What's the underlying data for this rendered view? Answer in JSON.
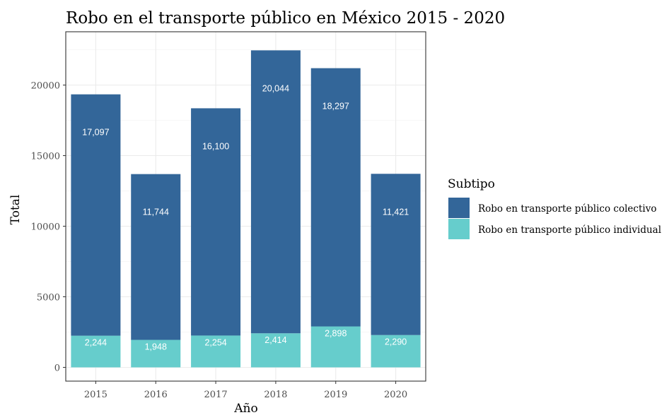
{
  "chart_data": {
    "type": "bar",
    "stacked": true,
    "title": "Robo en el transporte público en México 2015 - 2020",
    "xlabel": "Año",
    "ylabel": "Total",
    "categories": [
      "2015",
      "2016",
      "2017",
      "2018",
      "2019",
      "2020"
    ],
    "series": [
      {
        "name": "Robo en transporte público individual",
        "color": "#66CDCC",
        "values": [
          2244,
          1948,
          2254,
          2414,
          2898,
          2290
        ],
        "labels": [
          "2,244",
          "1,948",
          "2,254",
          "2,414",
          "2,898",
          "2,290"
        ]
      },
      {
        "name": "Robo en transporte público colectivo",
        "color": "#336699",
        "values": [
          17097,
          11744,
          16100,
          20044,
          18297,
          11421
        ],
        "labels": [
          "17,097",
          "11,744",
          "16,100",
          "20,044",
          "18,297",
          "11,421"
        ]
      }
    ],
    "ylim": [
      0,
      23000
    ],
    "yticks": [
      0,
      5000,
      10000,
      15000,
      20000
    ],
    "ytick_labels": [
      "0",
      "5000",
      "10000",
      "15000",
      "20000"
    ],
    "grid": true,
    "legend": {
      "title": "Subtipo",
      "placement": "right",
      "order": [
        "Robo en transporte público colectivo",
        "Robo en transporte público individual"
      ]
    }
  }
}
